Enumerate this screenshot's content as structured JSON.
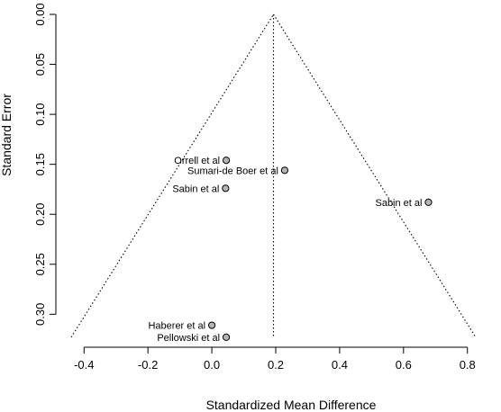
{
  "chart_data": {
    "type": "scatter",
    "title": "",
    "xlabel": "Standardized Mean Difference",
    "ylabel": "Standard Error",
    "xlim": [
      -0.46,
      0.86
    ],
    "ylim": [
      0.324,
      0.0
    ],
    "y_reversed": true,
    "x_ticks": [
      -0.4,
      -0.2,
      0.0,
      0.2,
      0.4,
      0.6,
      0.8
    ],
    "x_tick_labels": [
      "-0.4",
      "-0.2",
      "0.0",
      "0.2",
      "0.4",
      "0.6",
      "0.8"
    ],
    "y_ticks": [
      0.0,
      0.05,
      0.1,
      0.15,
      0.2,
      0.25,
      0.3
    ],
    "y_tick_labels": [
      "0.00",
      "0.05",
      "0.10",
      "0.15",
      "0.20",
      "0.25",
      "0.30"
    ],
    "grid": false,
    "summary_estimate": 0.193,
    "funnel": {
      "apex": [
        0.193,
        0.0
      ],
      "left_base": [
        -0.44,
        0.323
      ],
      "right_base": [
        0.826,
        0.323
      ]
    },
    "points": [
      {
        "label": "Orrell et al",
        "x": 0.045,
        "y": 0.146
      },
      {
        "label": "Sumari-de Boer et al",
        "x": 0.228,
        "y": 0.156
      },
      {
        "label": "Sabin et al",
        "x": 0.043,
        "y": 0.174
      },
      {
        "label": "Sabin et al",
        "x": 0.678,
        "y": 0.188
      },
      {
        "label": "Haberer et al",
        "x": 0.0,
        "y": 0.311
      },
      {
        "label": "Pellowski et al",
        "x": 0.045,
        "y": 0.323
      }
    ],
    "point_color": "#b4b4b4"
  }
}
